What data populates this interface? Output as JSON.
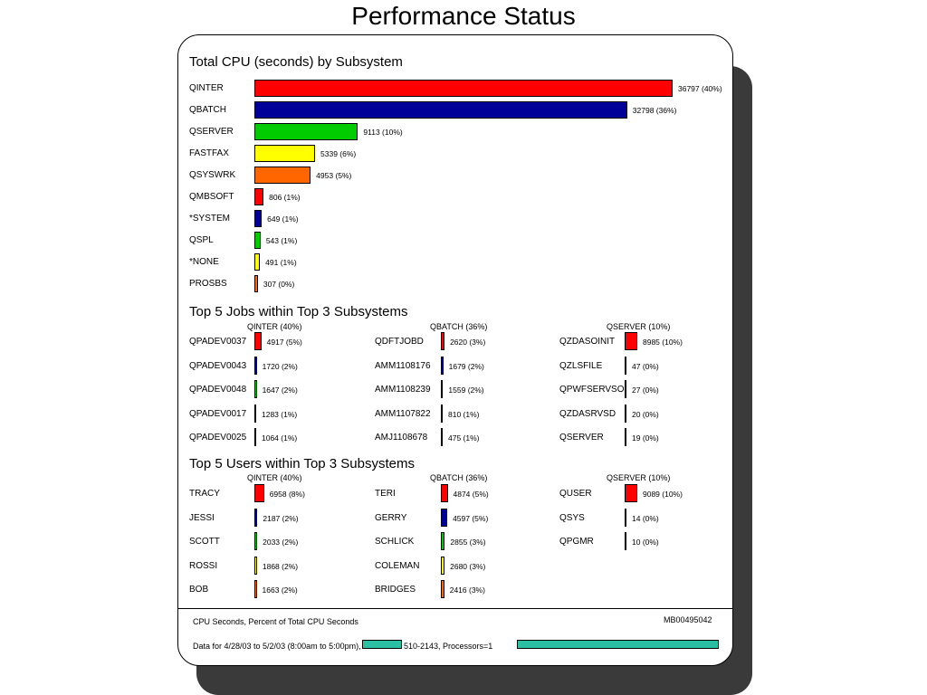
{
  "title": "Performance Status",
  "colors": [
    "#ff0000",
    "#000099",
    "#00cc00",
    "#ffff00",
    "#ff6600"
  ],
  "redaction_color": "#2bbfa4",
  "chart_data": [
    {
      "type": "bar",
      "orientation": "horizontal",
      "title": "Total CPU (seconds) by Subsystem",
      "categories": [
        "QINTER",
        "QBATCH",
        "QSERVER",
        "FASTFAX",
        "QSYSWRK",
        "QMBSOFT",
        "*SYSTEM",
        "QSPL",
        "*NONE",
        "PROSBS"
      ],
      "values": [
        36797,
        32798,
        9113,
        5339,
        4953,
        806,
        649,
        543,
        491,
        307
      ],
      "labels": [
        "36797 (40%)",
        "32798 (36%)",
        "9113 (10%)",
        "5339 (6%)",
        "4953 (5%)",
        "806 (1%)",
        "649 (1%)",
        "543 (1%)",
        "491 (1%)",
        "307 (0%)"
      ],
      "xlim": [
        0,
        36797
      ],
      "grid": false
    },
    {
      "type": "bar",
      "orientation": "horizontal",
      "title": "Top 5 Jobs within Top 3 Subsystems",
      "groups": [
        {
          "name": "QINTER (40%)",
          "categories": [
            "QPADEV0037",
            "QPADEV0043",
            "QPADEV0048",
            "QPADEV0017",
            "QPADEV0025"
          ],
          "values": [
            4917,
            1720,
            1647,
            1283,
            1064
          ],
          "labels": [
            "4917 (5%)",
            "1720 (2%)",
            "1647 (2%)",
            "1283 (1%)",
            "1064 (1%)"
          ]
        },
        {
          "name": "QBATCH (36%)",
          "categories": [
            "QDFTJOBD",
            "AMM1108176",
            "AMM1108239",
            "AMM1107822",
            "AMJ1108678"
          ],
          "values": [
            2620,
            1679,
            1559,
            810,
            475
          ],
          "labels": [
            "2620 (3%)",
            "1679 (2%)",
            "1559 (2%)",
            "810 (1%)",
            "475 (1%)"
          ]
        },
        {
          "name": "QSERVER (10%)",
          "categories": [
            "QZDASOINIT",
            "QZLSFILE",
            "QPWFSERVSO",
            "QZDASRVSD",
            "QSERVER"
          ],
          "values": [
            8985,
            47,
            27,
            20,
            19
          ],
          "labels": [
            "8985 (10%)",
            "47 (0%)",
            "27 (0%)",
            "20 (0%)",
            "19 (0%)"
          ]
        }
      ],
      "xlim": [
        0,
        8985
      ],
      "grid": false
    },
    {
      "type": "bar",
      "orientation": "horizontal",
      "title": "Top 5 Users within Top 3 Subsystems",
      "groups": [
        {
          "name": "QINTER (40%)",
          "categories": [
            "TRACY",
            "JESSI",
            "SCOTT",
            "ROSSI",
            "BOB"
          ],
          "values": [
            6958,
            2187,
            2033,
            1868,
            1663
          ],
          "labels": [
            "6958 (8%)",
            "2187 (2%)",
            "2033 (2%)",
            "1868 (2%)",
            "1663 (2%)"
          ]
        },
        {
          "name": "QBATCH (36%)",
          "categories": [
            "TERI",
            "GERRY",
            "SCHLICK",
            "COLEMAN",
            "BRIDGES"
          ],
          "values": [
            4874,
            4597,
            2855,
            2680,
            2416
          ],
          "labels": [
            "4874 (5%)",
            "4597 (5%)",
            "2855 (3%)",
            "2680 (3%)",
            "2416 (3%)"
          ]
        },
        {
          "name": "QSERVER (10%)",
          "categories": [
            "QUSER",
            "QSYS",
            "QPGMR"
          ],
          "values": [
            9089,
            14,
            10
          ],
          "labels": [
            "9089 (10%)",
            "14 (0%)",
            "10 (0%)"
          ]
        }
      ],
      "xlim": [
        0,
        9089
      ],
      "grid": false
    }
  ],
  "footer": {
    "note": "CPU Seconds, Percent of Total CPU Seconds",
    "id": "MB00495042",
    "data_range_prefix": "Data for 4/28/03 to 5/2/03 (8:00am to 5:00pm),",
    "data_range_middle": "510-2143, Processors=1"
  }
}
